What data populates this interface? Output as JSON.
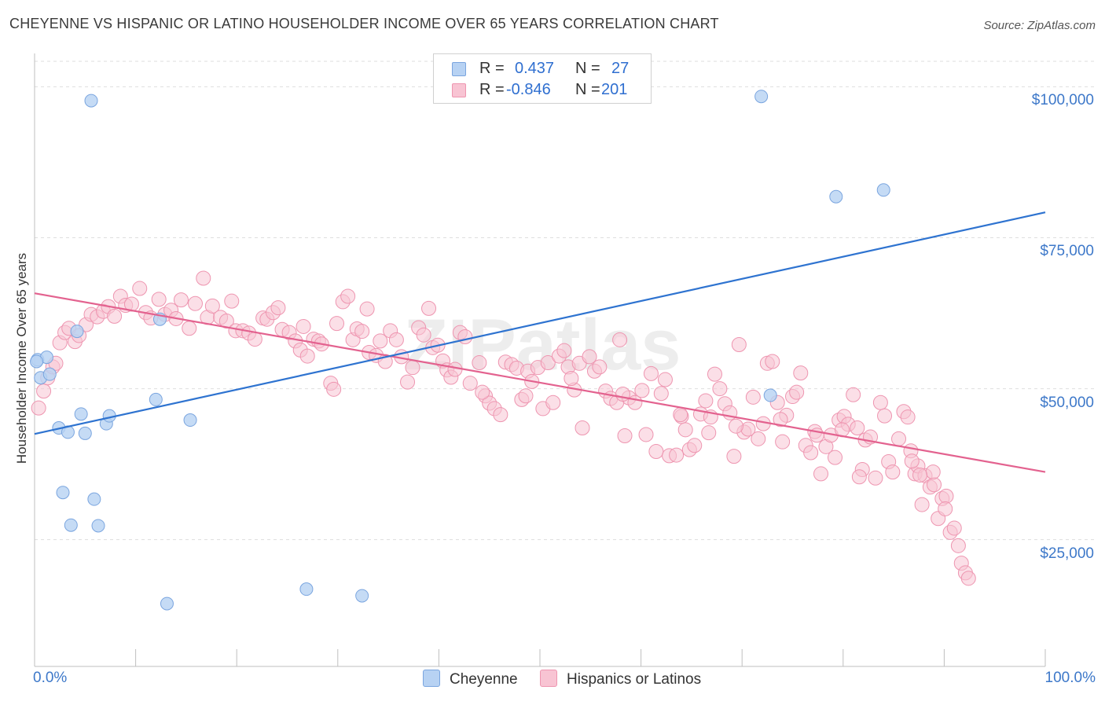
{
  "title": "CHEYENNE VS HISPANIC OR LATINO HOUSEHOLDER INCOME OVER 65 YEARS CORRELATION CHART",
  "source": "Source: ZipAtlas.com",
  "watermark": "ZIPatlas",
  "colors": {
    "cheyenne_fill": "#b7d2f3",
    "cheyenne_stroke": "#7aa5df",
    "cheyenne_line": "#2e73d0",
    "hispanic_fill": "#f8c4d3",
    "hispanic_stroke": "#ee95b0",
    "hispanic_line": "#e3628f",
    "tick_text": "#3d78c9",
    "grid": "#dedede"
  },
  "legend_top": {
    "rows": [
      {
        "r_label": "R =",
        "r_value": "0.437",
        "n_label": "N =",
        "n_value": "27"
      },
      {
        "r_label": "R =",
        "r_value": "-0.846",
        "n_label": "N =",
        "n_value": "201"
      }
    ]
  },
  "legend_bottom": {
    "items": [
      "Cheyenne",
      "Hispanics or Latinos"
    ]
  },
  "axes": {
    "ylabel": "Householder Income Over 65 years",
    "x_left_label": "0.0%",
    "x_right_label": "100.0%",
    "y_ticks": [
      "$100,000",
      "$75,000",
      "$50,000",
      "$25,000"
    ]
  },
  "chart_data": {
    "type": "scatter",
    "xlabel": "",
    "ylabel": "Householder Income Over 65 years",
    "xlim": [
      0,
      100
    ],
    "ylim": [
      4000,
      105000
    ],
    "y_tick_values": [
      100000,
      75000,
      50000,
      25000
    ],
    "grid": true,
    "legend_placement": "bottom",
    "series": [
      {
        "name": "Cheyenne",
        "r": 0.437,
        "n": 27,
        "trend": {
          "x": [
            0,
            100
          ],
          "y": [
            42500,
            79200
          ]
        },
        "points": [
          [
            0.3,
            54800
          ],
          [
            0.6,
            51800
          ],
          [
            1.2,
            55200
          ],
          [
            1.5,
            52400
          ],
          [
            4.2,
            59500
          ],
          [
            2.4,
            43500
          ],
          [
            3.3,
            42800
          ],
          [
            4.6,
            45800
          ],
          [
            5.0,
            42600
          ],
          [
            7.1,
            44200
          ],
          [
            7.4,
            45500
          ],
          [
            12.0,
            48200
          ],
          [
            12.4,
            61500
          ],
          [
            15.4,
            44800
          ],
          [
            2.8,
            32800
          ],
          [
            5.9,
            31700
          ],
          [
            3.6,
            27400
          ],
          [
            6.3,
            27300
          ],
          [
            13.1,
            14400
          ],
          [
            26.9,
            16800
          ],
          [
            32.4,
            15700
          ],
          [
            5.6,
            97700
          ],
          [
            71.9,
            98400
          ],
          [
            72.8,
            48900
          ],
          [
            79.3,
            81800
          ],
          [
            84.0,
            82900
          ],
          [
            0.2,
            54500
          ]
        ]
      },
      {
        "name": "Hispanics or Latinos",
        "r": -0.846,
        "n": 201,
        "trend": {
          "x": [
            0,
            100
          ],
          "y": [
            65800,
            36200
          ]
        },
        "points": [
          [
            0.4,
            46800
          ],
          [
            0.9,
            49600
          ],
          [
            1.3,
            51800
          ],
          [
            1.8,
            53600
          ],
          [
            2.1,
            54200
          ],
          [
            2.5,
            57600
          ],
          [
            3.0,
            59300
          ],
          [
            3.4,
            60000
          ],
          [
            4.0,
            57800
          ],
          [
            4.4,
            58800
          ],
          [
            5.1,
            60600
          ],
          [
            5.6,
            62300
          ],
          [
            6.2,
            61900
          ],
          [
            6.8,
            62800
          ],
          [
            7.3,
            63600
          ],
          [
            7.9,
            62000
          ],
          [
            8.5,
            65300
          ],
          [
            9.0,
            63800
          ],
          [
            9.6,
            64000
          ],
          [
            10.4,
            66600
          ],
          [
            11.0,
            62600
          ],
          [
            11.5,
            61700
          ],
          [
            12.3,
            64800
          ],
          [
            12.9,
            62300
          ],
          [
            13.5,
            63000
          ],
          [
            14.0,
            61600
          ],
          [
            14.5,
            64700
          ],
          [
            15.3,
            60000
          ],
          [
            15.9,
            64100
          ],
          [
            16.7,
            68300
          ],
          [
            17.1,
            61800
          ],
          [
            17.6,
            63700
          ],
          [
            18.4,
            61800
          ],
          [
            19.0,
            61200
          ],
          [
            19.5,
            64500
          ],
          [
            19.9,
            59600
          ],
          [
            20.6,
            59600
          ],
          [
            21.2,
            59200
          ],
          [
            21.8,
            58200
          ],
          [
            22.6,
            61700
          ],
          [
            23.0,
            61500
          ],
          [
            23.6,
            62600
          ],
          [
            24.1,
            63400
          ],
          [
            24.5,
            59800
          ],
          [
            25.2,
            59300
          ],
          [
            25.8,
            57900
          ],
          [
            26.3,
            56400
          ],
          [
            26.6,
            60300
          ],
          [
            27.0,
            55400
          ],
          [
            27.6,
            58200
          ],
          [
            28.1,
            57900
          ],
          [
            28.4,
            57400
          ],
          [
            29.3,
            50900
          ],
          [
            29.6,
            49900
          ],
          [
            29.9,
            60800
          ],
          [
            30.5,
            64400
          ],
          [
            31.0,
            65300
          ],
          [
            31.5,
            58100
          ],
          [
            31.9,
            59900
          ],
          [
            32.4,
            59500
          ],
          [
            32.9,
            63200
          ],
          [
            33.1,
            56000
          ],
          [
            33.8,
            55500
          ],
          [
            34.2,
            57900
          ],
          [
            34.7,
            54500
          ],
          [
            35.2,
            59600
          ],
          [
            35.8,
            58100
          ],
          [
            36.3,
            55300
          ],
          [
            36.9,
            51100
          ],
          [
            37.4,
            53500
          ],
          [
            38.0,
            60100
          ],
          [
            38.5,
            58900
          ],
          [
            39.0,
            63300
          ],
          [
            39.4,
            56800
          ],
          [
            39.9,
            57200
          ],
          [
            40.4,
            54600
          ],
          [
            40.8,
            53100
          ],
          [
            41.2,
            51900
          ],
          [
            41.6,
            53200
          ],
          [
            42.1,
            59300
          ],
          [
            42.6,
            58600
          ],
          [
            43.1,
            50900
          ],
          [
            44.0,
            54300
          ],
          [
            44.6,
            48800
          ],
          [
            45.0,
            47600
          ],
          [
            45.5,
            46700
          ],
          [
            46.1,
            45700
          ],
          [
            46.6,
            54400
          ],
          [
            47.2,
            54000
          ],
          [
            47.7,
            53400
          ],
          [
            48.2,
            48200
          ],
          [
            48.8,
            52900
          ],
          [
            49.2,
            51200
          ],
          [
            49.8,
            53500
          ],
          [
            50.3,
            46700
          ],
          [
            50.8,
            54300
          ],
          [
            51.3,
            47700
          ],
          [
            51.9,
            55400
          ],
          [
            52.4,
            56300
          ],
          [
            52.8,
            53600
          ],
          [
            53.4,
            49800
          ],
          [
            53.9,
            54200
          ],
          [
            54.2,
            43500
          ],
          [
            54.9,
            55300
          ],
          [
            55.4,
            52900
          ],
          [
            55.9,
            53600
          ],
          [
            56.5,
            49600
          ],
          [
            57.0,
            48400
          ],
          [
            57.6,
            47700
          ],
          [
            57.9,
            58100
          ],
          [
            58.4,
            42200
          ],
          [
            58.8,
            48500
          ],
          [
            59.4,
            47700
          ],
          [
            60.1,
            49700
          ],
          [
            60.5,
            42400
          ],
          [
            61.0,
            52500
          ],
          [
            61.5,
            39600
          ],
          [
            62.0,
            49200
          ],
          [
            62.4,
            51500
          ],
          [
            62.8,
            38900
          ],
          [
            63.5,
            39000
          ],
          [
            64.0,
            45400
          ],
          [
            64.4,
            43200
          ],
          [
            64.8,
            39900
          ],
          [
            65.3,
            40600
          ],
          [
            65.9,
            45800
          ],
          [
            66.4,
            48000
          ],
          [
            66.9,
            45300
          ],
          [
            67.3,
            52400
          ],
          [
            67.8,
            50000
          ],
          [
            68.3,
            47500
          ],
          [
            68.8,
            46000
          ],
          [
            69.2,
            38800
          ],
          [
            69.7,
            57300
          ],
          [
            70.2,
            42800
          ],
          [
            70.6,
            43300
          ],
          [
            71.1,
            48600
          ],
          [
            71.6,
            41700
          ],
          [
            72.1,
            44200
          ],
          [
            72.5,
            54200
          ],
          [
            73.0,
            54500
          ],
          [
            73.5,
            47700
          ],
          [
            74.0,
            41200
          ],
          [
            74.4,
            45600
          ],
          [
            75.0,
            48700
          ],
          [
            75.4,
            49400
          ],
          [
            75.8,
            52600
          ],
          [
            76.3,
            40600
          ],
          [
            76.8,
            39400
          ],
          [
            77.2,
            42900
          ],
          [
            77.8,
            35900
          ],
          [
            78.3,
            40400
          ],
          [
            78.8,
            42300
          ],
          [
            79.2,
            38600
          ],
          [
            79.6,
            44800
          ],
          [
            80.1,
            45400
          ],
          [
            80.5,
            44100
          ],
          [
            81.0,
            49000
          ],
          [
            81.4,
            43500
          ],
          [
            81.9,
            36600
          ],
          [
            82.2,
            41500
          ],
          [
            82.7,
            42000
          ],
          [
            83.2,
            35200
          ],
          [
            83.7,
            47700
          ],
          [
            84.1,
            45500
          ],
          [
            84.5,
            37900
          ],
          [
            84.9,
            36200
          ],
          [
            85.5,
            41700
          ],
          [
            86.0,
            46200
          ],
          [
            86.4,
            45300
          ],
          [
            86.7,
            39700
          ],
          [
            87.1,
            35900
          ],
          [
            87.4,
            37200
          ],
          [
            87.8,
            30800
          ],
          [
            88.1,
            35600
          ],
          [
            88.6,
            33700
          ],
          [
            89.0,
            34100
          ],
          [
            89.4,
            28500
          ],
          [
            89.8,
            31800
          ],
          [
            90.2,
            32200
          ],
          [
            90.6,
            26200
          ],
          [
            91.0,
            26900
          ],
          [
            91.4,
            24000
          ],
          [
            91.7,
            21100
          ],
          [
            92.1,
            19500
          ],
          [
            92.4,
            18600
          ],
          [
            90.1,
            30100
          ],
          [
            88.9,
            36200
          ],
          [
            87.6,
            35700
          ],
          [
            86.8,
            38000
          ],
          [
            81.6,
            35400
          ],
          [
            79.9,
            43200
          ],
          [
            77.4,
            42300
          ],
          [
            73.8,
            44900
          ],
          [
            69.4,
            43800
          ],
          [
            66.7,
            42700
          ],
          [
            63.9,
            45700
          ],
          [
            58.2,
            49100
          ],
          [
            53.1,
            51700
          ],
          [
            48.6,
            48800
          ],
          [
            44.3,
            49400
          ]
        ]
      }
    ]
  }
}
